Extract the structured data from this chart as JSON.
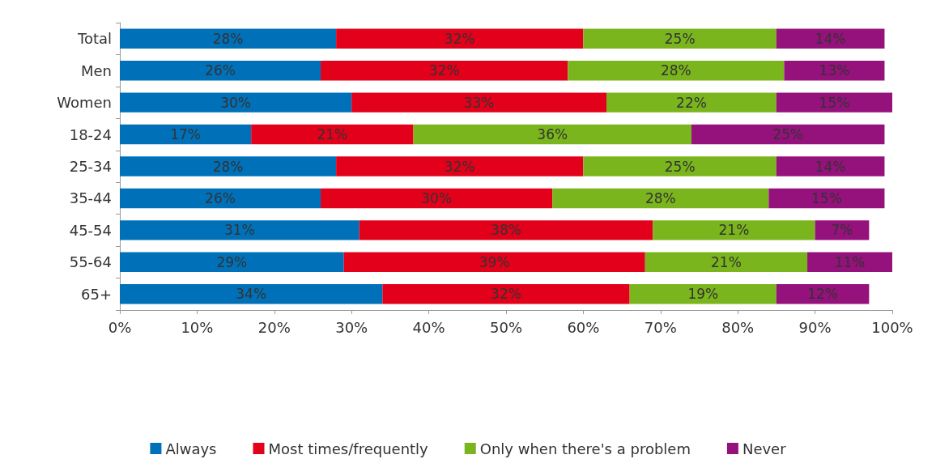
{
  "chart_data": {
    "type": "bar",
    "orientation": "horizontal",
    "stacked": true,
    "legend": "bottom",
    "grid": false,
    "categories": [
      "Total",
      "Men",
      "Women",
      "18-24",
      "25-34",
      "35-44",
      "45-54",
      "55-64",
      "65+"
    ],
    "xlim": [
      0,
      100
    ],
    "xticks": [
      {
        "value": 0,
        "label": "0%"
      },
      {
        "value": 10,
        "label": "10%"
      },
      {
        "value": 20,
        "label": "20%"
      },
      {
        "value": 30,
        "label": "30%"
      },
      {
        "value": 40,
        "label": "40%"
      },
      {
        "value": 50,
        "label": "50%"
      },
      {
        "value": 60,
        "label": "60%"
      },
      {
        "value": 70,
        "label": "70%"
      },
      {
        "value": 80,
        "label": "80%"
      },
      {
        "value": 90,
        "label": "90%"
      },
      {
        "value": 100,
        "label": "100%"
      }
    ],
    "series": [
      {
        "name": "Always",
        "color": "#0070b8",
        "values": [
          28,
          26,
          30,
          17,
          28,
          26,
          31,
          29,
          34
        ],
        "value_labels": [
          "28%",
          "26%",
          "30%",
          "17%",
          "28%",
          "26%",
          "31%",
          "29%",
          "34%"
        ]
      },
      {
        "name": "Most times/frequently",
        "color": "#e2001a",
        "values": [
          32,
          32,
          33,
          21,
          32,
          30,
          38,
          39,
          32
        ],
        "value_labels": [
          "32%",
          "32%",
          "33%",
          "21%",
          "32%",
          "30%",
          "38%",
          "39%",
          "32%"
        ]
      },
      {
        "name": "Only when there's a problem",
        "color": "#7ab51d",
        "values": [
          25,
          28,
          22,
          36,
          25,
          28,
          21,
          21,
          19
        ],
        "value_labels": [
          "25%",
          "28%",
          "22%",
          "36%",
          "25%",
          "28%",
          "21%",
          "21%",
          "19%"
        ]
      },
      {
        "name": "Never",
        "color": "#95117c",
        "values": [
          14,
          13,
          15,
          25,
          14,
          15,
          7,
          11,
          12
        ],
        "value_labels": [
          "14%",
          "13%",
          "15%",
          "25%",
          "14%",
          "15%",
          "7%",
          "11%",
          "12%"
        ]
      }
    ]
  }
}
